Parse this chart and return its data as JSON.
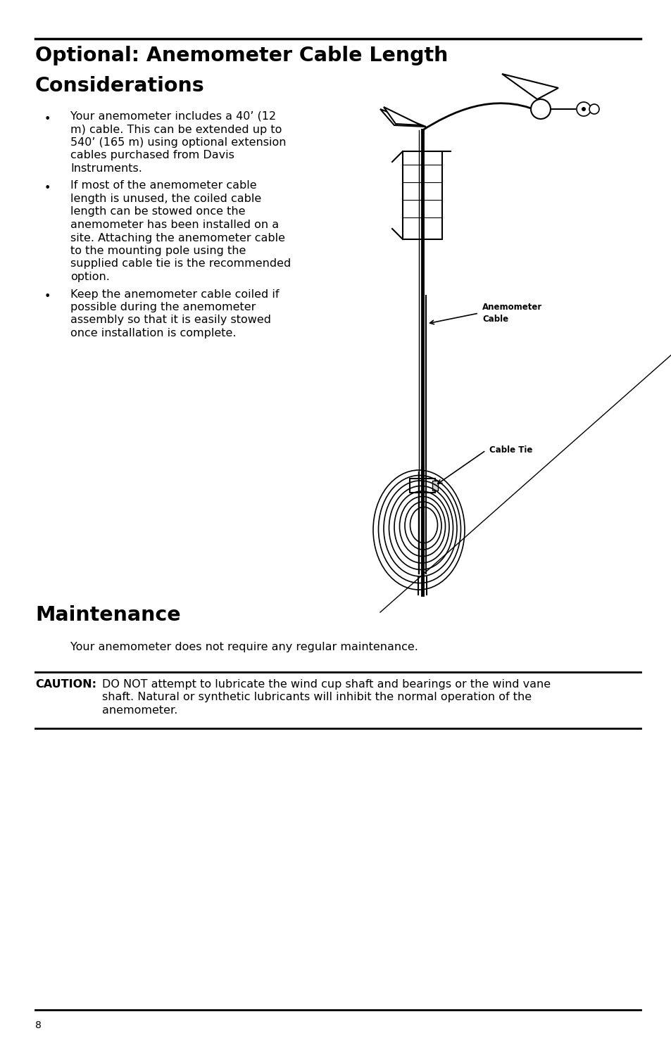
{
  "bg_color": "#ffffff",
  "text_color": "#000000",
  "page_width": 9.54,
  "page_height": 14.75,
  "section1_title_line1": "Optional: Anemometer Cable Length",
  "section1_title_line2": "Considerations",
  "bullet1_lines": [
    "Your anemometer includes a 40’ (12",
    "m) cable. This can be extended up to",
    "540’ (165 m) using optional extension",
    "cables purchased from Davis",
    "Instruments."
  ],
  "bullet2_lines": [
    "If most of the anemometer cable",
    "length is unused, the coiled cable",
    "length can be stowed once the",
    "anemometer has been installed on a",
    "site. Attaching the anemometer cable",
    "to the mounting pole using the",
    "supplied cable tie is the recommended",
    "option."
  ],
  "bullet3_lines": [
    "Keep the anemometer cable coiled if",
    "possible during the anemometer",
    "assembly so that it is easily stowed",
    "once installation is complete."
  ],
  "section2_title": "Maintenance",
  "maintenance_body": "Your anemometer does not require any regular maintenance.",
  "caution_label": "CAUTION:",
  "caution_line1": "DO NOT attempt to lubricate the wind cup shaft and bearings or the wind vane",
  "caution_line2": "shaft. Natural or synthetic lubricants will inhibit the normal operation of the",
  "caution_line3": "anemometer.",
  "page_number": "8",
  "anemometer_label_line1": "Anemometer",
  "anemometer_label_line2": "Cable",
  "cable_tie_label": "Cable Tie"
}
